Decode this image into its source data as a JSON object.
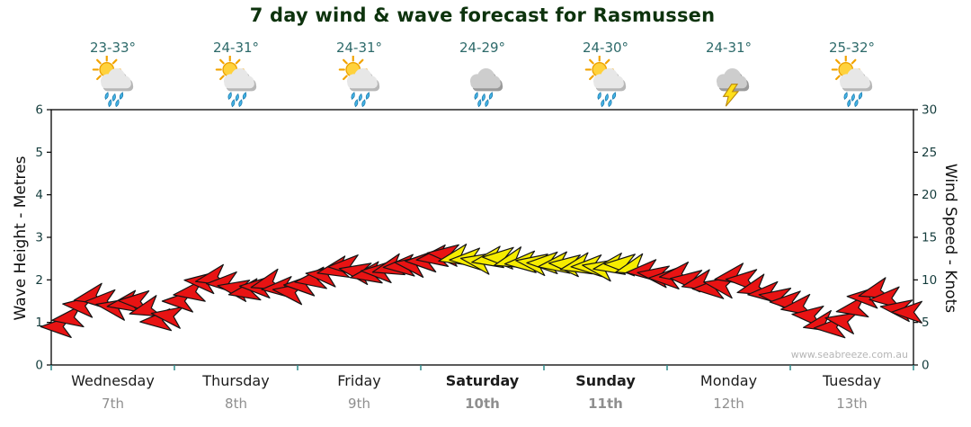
{
  "title": "7 day wind & wave forecast for Rasmussen",
  "watermark": "www.seabreeze.com.au",
  "colors": {
    "title_text": "#0d330d",
    "temp_text": "#2d6a6a",
    "axis_text": "#143c3c",
    "axis_title_text": "#101010",
    "axis_line": "#000000",
    "day_name": "#1c1c1c",
    "day_date": "#8f8f8f",
    "day_tick": "#2e8b8b",
    "watermark": "#b5b5b5",
    "arrow_red": "#e81313",
    "arrow_yellow": "#f6ec00",
    "arrow_outline": "#141414"
  },
  "chart_data": {
    "type": "wind_feather",
    "title": "7 day wind & wave forecast for Rasmussen",
    "left_axis": {
      "label": "Wave Height - Metres",
      "min": 0,
      "max": 6,
      "ticks": [
        0,
        1,
        2,
        3,
        4,
        5,
        6
      ]
    },
    "right_axis": {
      "label": "Wind Speed - Knots",
      "min": 0,
      "max": 30,
      "ticks": [
        0,
        5,
        10,
        15,
        20,
        25,
        30
      ]
    },
    "days": [
      {
        "name": "Wednesday",
        "date": "7th",
        "temp": "23-33°",
        "icon": "sun-cloud-rain",
        "weekend": false
      },
      {
        "name": "Thursday",
        "date": "8th",
        "temp": "24-31°",
        "icon": "sun-cloud-rain",
        "weekend": false
      },
      {
        "name": "Friday",
        "date": "9th",
        "temp": "24-31°",
        "icon": "sun-cloud-rain",
        "weekend": false
      },
      {
        "name": "Saturday",
        "date": "10th",
        "temp": "24-29°",
        "icon": "cloud-rain",
        "weekend": true
      },
      {
        "name": "Sunday",
        "date": "11th",
        "temp": "24-30°",
        "icon": "sun-cloud-rain",
        "weekend": true
      },
      {
        "name": "Monday",
        "date": "12th",
        "temp": "24-31°",
        "icon": "cloud-lightning",
        "weekend": false
      },
      {
        "name": "Tuesday",
        "date": "13th",
        "temp": "25-32°",
        "icon": "sun-cloud-rain",
        "weekend": false
      }
    ],
    "arrow_color_key": {
      "r": "red",
      "y": "yellow"
    },
    "wind_arrows": [
      [
        0.045,
        4.5,
        270,
        "r"
      ],
      [
        0.135,
        5.5,
        262,
        "r"
      ],
      [
        0.224,
        7,
        275,
        "r"
      ],
      [
        0.314,
        8,
        258,
        "r"
      ],
      [
        0.404,
        7.5,
        268,
        "r"
      ],
      [
        0.494,
        6.8,
        280,
        "r"
      ],
      [
        0.583,
        7.2,
        260,
        "r"
      ],
      [
        0.673,
        7.5,
        272,
        "r"
      ],
      [
        0.763,
        6.5,
        255,
        "r"
      ],
      [
        0.852,
        5.2,
        266,
        "r"
      ],
      [
        0.942,
        5.8,
        278,
        "r"
      ],
      [
        1.032,
        7.5,
        270,
        "r"
      ],
      [
        1.122,
        8.5,
        262,
        "r"
      ],
      [
        1.211,
        9.8,
        275,
        "r"
      ],
      [
        1.301,
        10.2,
        258,
        "r"
      ],
      [
        1.391,
        9.6,
        268,
        "r"
      ],
      [
        1.48,
        9,
        280,
        "r"
      ],
      [
        1.57,
        8.6,
        260,
        "r"
      ],
      [
        1.66,
        9.2,
        272,
        "r"
      ],
      [
        1.749,
        9.6,
        255,
        "r"
      ],
      [
        1.839,
        9,
        266,
        "r"
      ],
      [
        1.929,
        8.6,
        278,
        "r"
      ],
      [
        2.019,
        9.4,
        270,
        "r"
      ],
      [
        2.108,
        10,
        262,
        "r"
      ],
      [
        2.198,
        10.6,
        275,
        "r"
      ],
      [
        2.288,
        11.2,
        258,
        "r"
      ],
      [
        2.377,
        11.6,
        268,
        "r"
      ],
      [
        2.467,
        11,
        280,
        "r"
      ],
      [
        2.557,
        10.6,
        260,
        "r"
      ],
      [
        2.646,
        11,
        272,
        "r"
      ],
      [
        2.736,
        11.4,
        255,
        "r"
      ],
      [
        2.826,
        11.6,
        266,
        "r"
      ],
      [
        2.916,
        11.8,
        278,
        "r"
      ],
      [
        3.005,
        12.2,
        270,
        "r"
      ],
      [
        3.095,
        12.6,
        262,
        "r"
      ],
      [
        3.185,
        13,
        275,
        "r"
      ],
      [
        3.274,
        12.6,
        258,
        "y"
      ],
      [
        3.364,
        12.4,
        268,
        "y"
      ],
      [
        3.454,
        12.2,
        280,
        "y"
      ],
      [
        3.544,
        12.4,
        260,
        "y"
      ],
      [
        3.633,
        12.6,
        272,
        "y"
      ],
      [
        3.723,
        12.2,
        255,
        "y"
      ],
      [
        3.813,
        12,
        266,
        "y"
      ],
      [
        3.902,
        12,
        278,
        "y"
      ],
      [
        3.992,
        12,
        270,
        "y"
      ],
      [
        4.082,
        11.8,
        262,
        "y"
      ],
      [
        4.171,
        11.8,
        275,
        "y"
      ],
      [
        4.261,
        11.6,
        258,
        "y"
      ],
      [
        4.351,
        11.6,
        268,
        "y"
      ],
      [
        4.441,
        11.4,
        280,
        "y"
      ],
      [
        4.53,
        11.6,
        260,
        "y"
      ],
      [
        4.62,
        11.8,
        272,
        "y"
      ],
      [
        4.71,
        11.4,
        255,
        "y"
      ],
      [
        4.799,
        11,
        266,
        "r"
      ],
      [
        4.889,
        10.6,
        278,
        "r"
      ],
      [
        4.979,
        10.2,
        270,
        "r"
      ],
      [
        5.068,
        10.6,
        262,
        "r"
      ],
      [
        5.158,
        10,
        275,
        "r"
      ],
      [
        5.248,
        9.6,
        258,
        "r"
      ],
      [
        5.338,
        9,
        268,
        "r"
      ],
      [
        5.427,
        9.4,
        280,
        "r"
      ],
      [
        5.517,
        10.4,
        260,
        "r"
      ],
      [
        5.607,
        10,
        272,
        "r"
      ],
      [
        5.696,
        9,
        255,
        "r"
      ],
      [
        5.786,
        8.4,
        266,
        "r"
      ],
      [
        5.876,
        8,
        278,
        "r"
      ],
      [
        5.965,
        7.4,
        270,
        "r"
      ],
      [
        6.055,
        6.8,
        262,
        "r"
      ],
      [
        6.145,
        5.8,
        275,
        "r"
      ],
      [
        6.235,
        4.8,
        258,
        "r"
      ],
      [
        6.324,
        4.4,
        268,
        "r"
      ],
      [
        6.414,
        5.2,
        280,
        "r"
      ],
      [
        6.504,
        6.6,
        260,
        "r"
      ],
      [
        6.593,
        8,
        272,
        "r"
      ],
      [
        6.683,
        8.6,
        255,
        "r"
      ],
      [
        6.773,
        7.8,
        266,
        "r"
      ],
      [
        6.862,
        6.6,
        278,
        "r"
      ],
      [
        6.952,
        6.2,
        270,
        "r"
      ]
    ]
  }
}
